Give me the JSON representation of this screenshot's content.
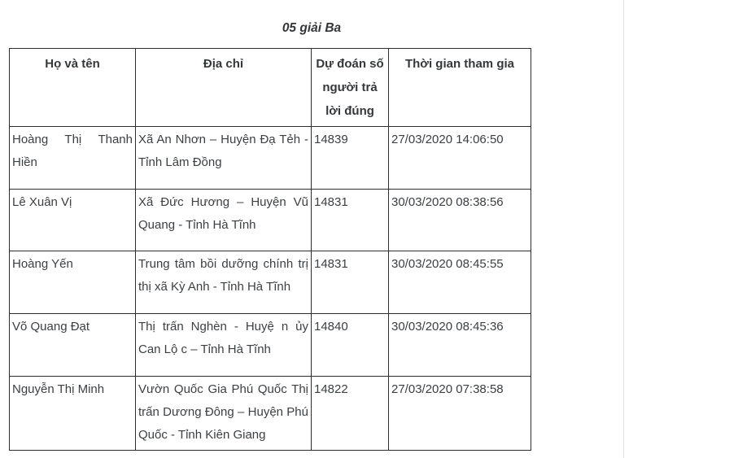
{
  "page": {
    "title": "05 giải Ba"
  },
  "table": {
    "columns": [
      {
        "key": "name",
        "label": "Họ và tên"
      },
      {
        "key": "address",
        "label": "Địa chỉ"
      },
      {
        "key": "guess",
        "label": "Dự đoán số người trả lời đúng"
      },
      {
        "key": "time",
        "label": "Thời gian tham gia"
      }
    ],
    "rows": [
      {
        "name": "Hoàng Thị Thanh Hiền",
        "address": "Xã An Nhơn – Huyện Đạ Tẻh - Tỉnh Lâm Đồng",
        "guess": "14839",
        "time": "27/03/2020 14:06:50"
      },
      {
        "name": "Lê Xuân Vị",
        "address": "Xã Đức Hương – Huyện Vũ Quang - Tỉnh Hà Tĩnh",
        "guess": "14831",
        "time": "30/03/2020 08:38:56"
      },
      {
        "name": "Hoàng Yến",
        "address": "Trung tâm bồi dưỡng chính trị thị xã Kỳ Anh - Tỉnh Hà Tĩnh",
        "guess": "14831",
        "time": "30/03/2020 08:45:55"
      },
      {
        "name": "Võ Quang Đạt",
        "address": "Thị trấn Nghèn - Huyệ n ủy Can Lộ c – Tỉnh Hà Tĩnh",
        "guess": "14840",
        "time": "30/03/2020 08:45:36"
      },
      {
        "name": "Nguyễn Thị Minh",
        "address": "Vườn Quốc Gia Phú Quốc Thị trấn Dương Đông – Huyện Phú Quốc - Tỉnh Kiên Giang",
        "guess": "14822",
        "time": "27/03/2020 07:38:58"
      }
    ]
  },
  "colors": {
    "text": "#3c4043",
    "table_border": "#2e2e2e",
    "page_divider": "#e4e4e4",
    "background": "#ffffff"
  }
}
